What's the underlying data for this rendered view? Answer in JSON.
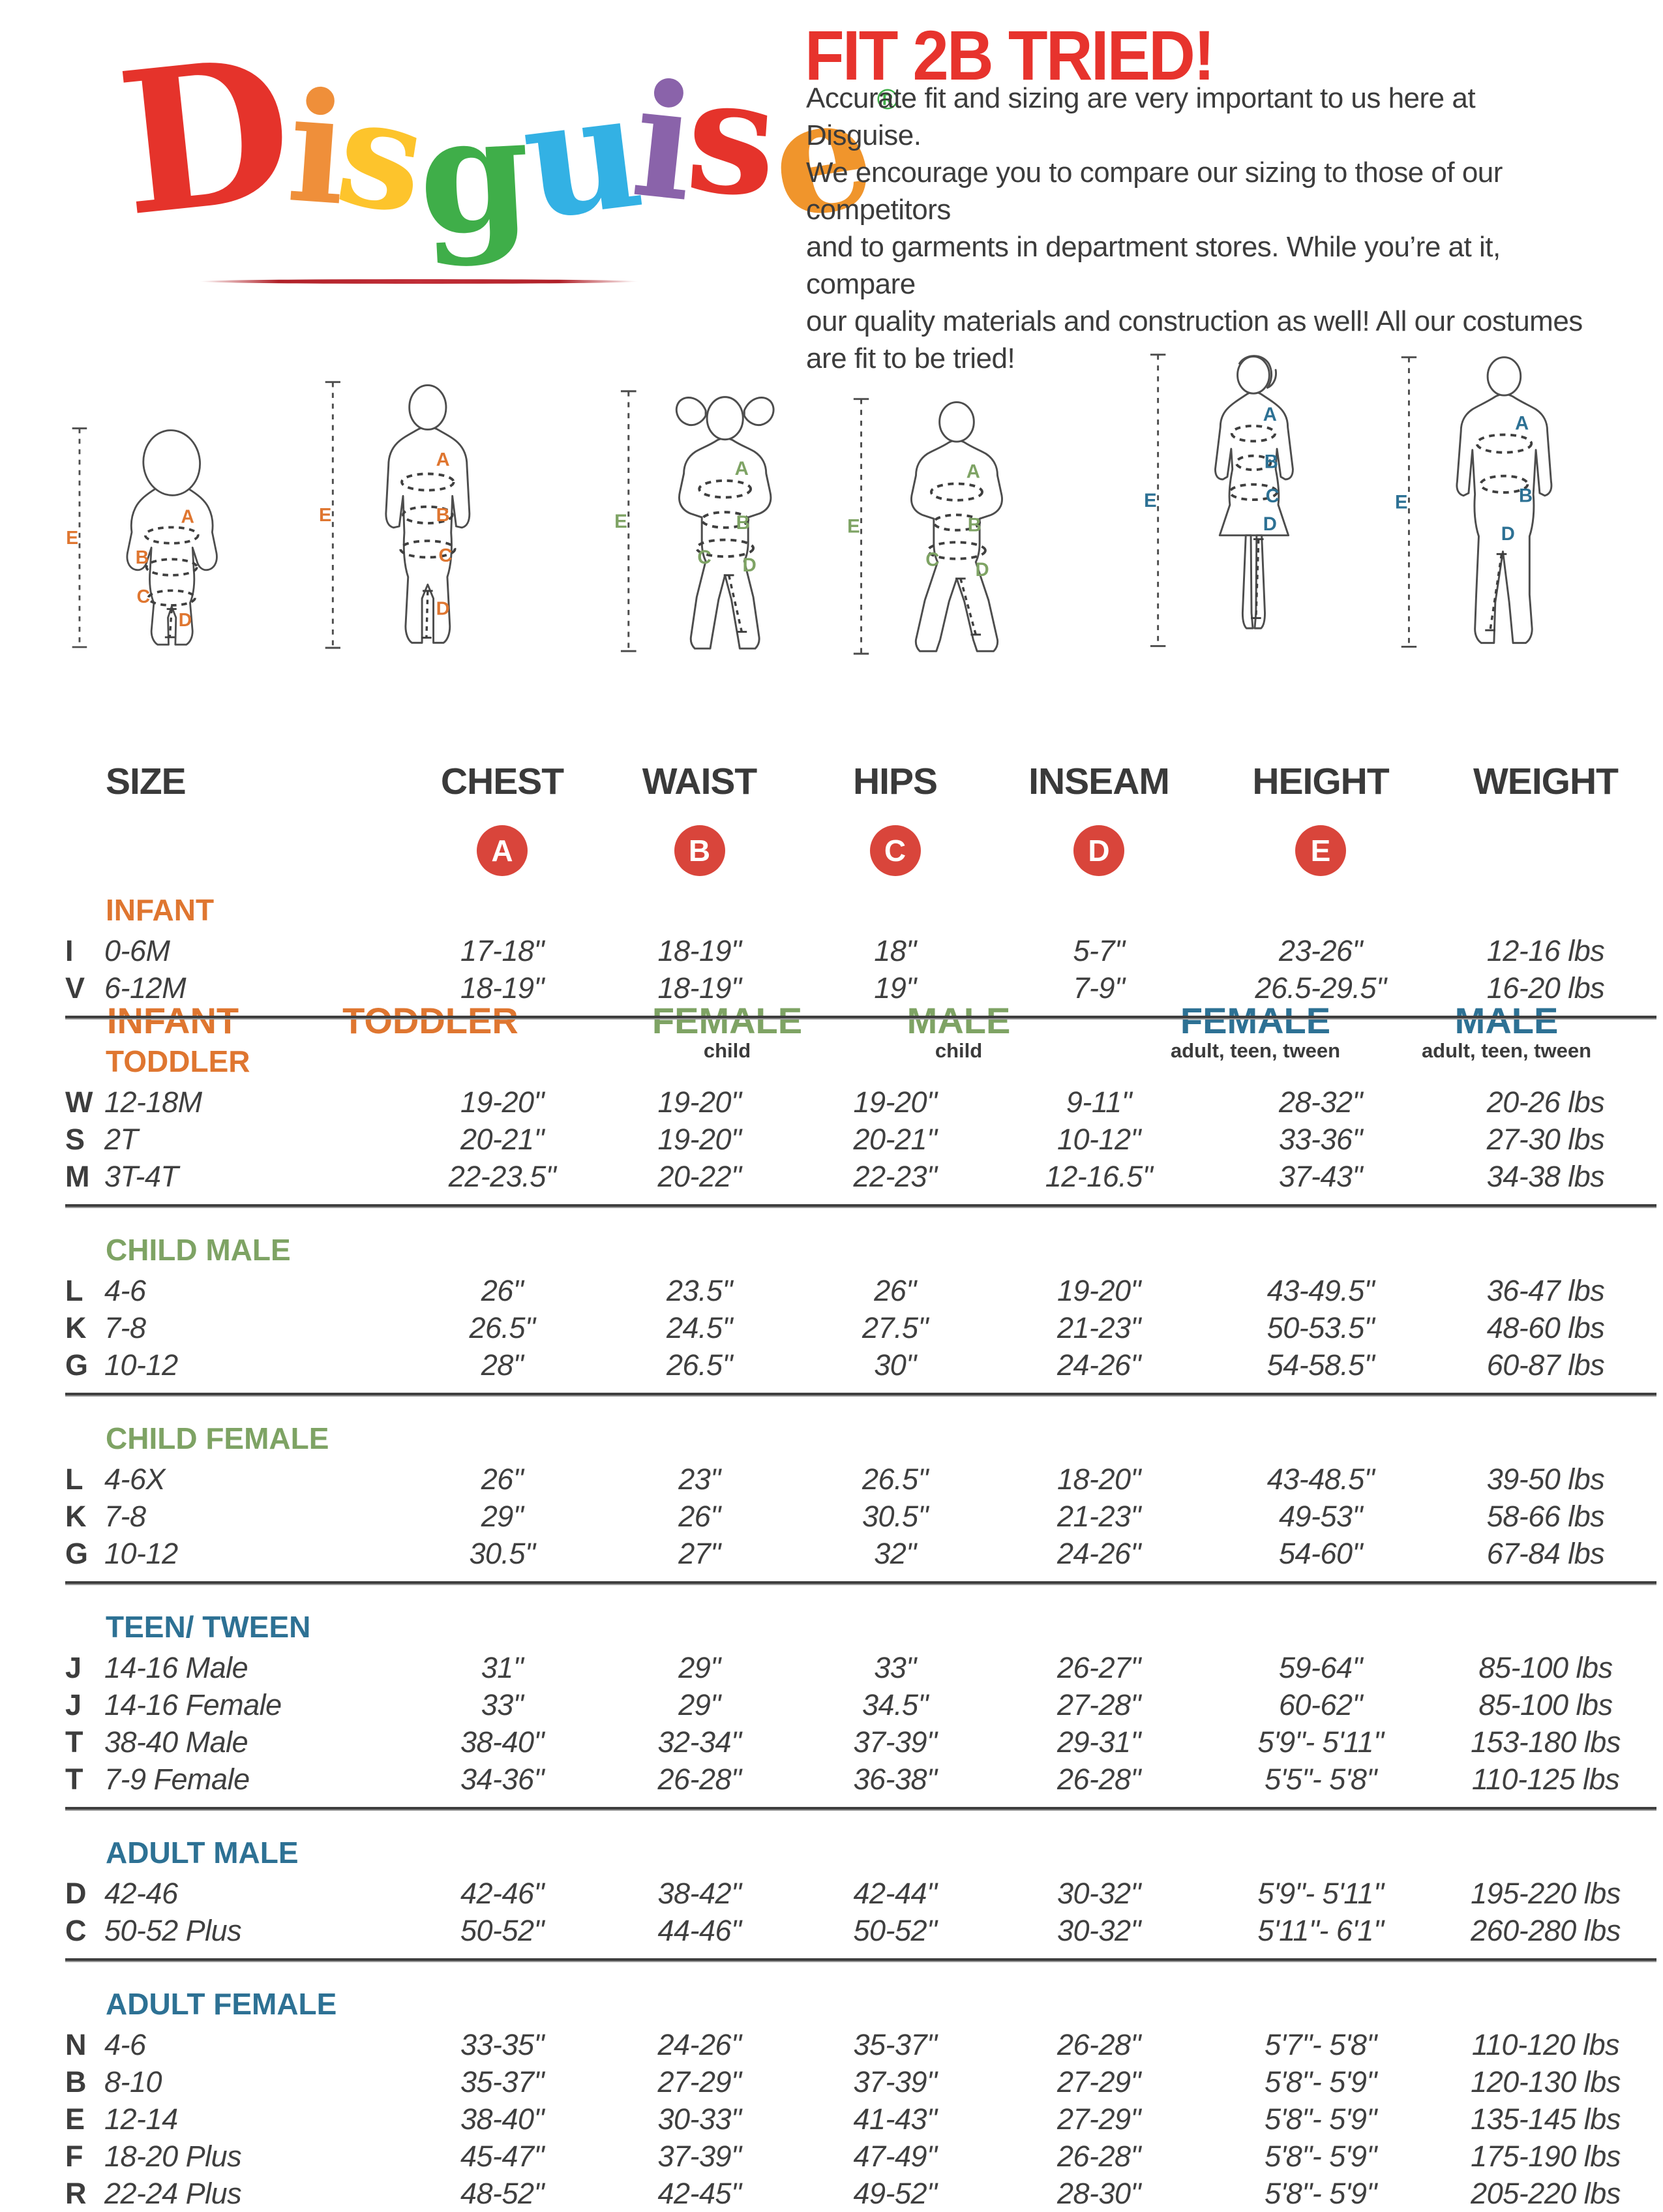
{
  "logo": {
    "letters": [
      {
        "ch": "D",
        "color": "#e5332b"
      },
      {
        "ch": "i",
        "color": "#ef8f3a"
      },
      {
        "ch": "s",
        "color": "#fdc42c"
      },
      {
        "ch": "g",
        "color": "#3fae49"
      },
      {
        "ch": "u",
        "color": "#33b1e4"
      },
      {
        "ch": "i",
        "color": "#8a63aa"
      },
      {
        "ch": "s",
        "color": "#e5332b"
      },
      {
        "ch": "e",
        "color": "#f0952c"
      }
    ],
    "registered": "®",
    "registered_color": "#3fae49"
  },
  "header": {
    "title": "FIT 2B TRIED!",
    "title_color": "#e7332d",
    "paragraph_lines": [
      "Accurate fit and sizing are very important to us here at Disguise.",
      "We encourage you to compare our sizing to those of our competitors",
      "and to garments in department stores. While you’re at it, compare",
      "our quality materials and construction as well! All our costumes",
      "are fit to be tried!"
    ]
  },
  "measure_letters": [
    "A",
    "B",
    "C",
    "D",
    "E"
  ],
  "figures": [
    {
      "id": "infant",
      "label": "INFANT",
      "sublabel": "",
      "color": "#df7630"
    },
    {
      "id": "toddler",
      "label": "TODDLER",
      "sublabel": "",
      "color": "#df7630"
    },
    {
      "id": "female-child",
      "label": "FEMALE",
      "sublabel": "child",
      "color": "#7ea364"
    },
    {
      "id": "male-child",
      "label": "MALE",
      "sublabel": "child",
      "color": "#7ea364"
    },
    {
      "id": "female-adult",
      "label": "FEMALE",
      "sublabel": "adult, teen, tween",
      "color": "#2d7194"
    },
    {
      "id": "male-adult",
      "label": "MALE",
      "sublabel": "adult, teen, tween",
      "color": "#2d7194"
    }
  ],
  "table": {
    "columns": [
      "SIZE",
      "CHEST",
      "WAIST",
      "HIPS",
      "INSEAM",
      "HEIGHT",
      "WEIGHT"
    ],
    "badge_color": "#d9453b",
    "sections": [
      {
        "title": "INFANT",
        "color": "#df7630",
        "rows": [
          [
            "I",
            "0-6M",
            "17-18\"",
            "18-19\"",
            "18\"",
            "5-7\"",
            "23-26\"",
            "12-16 lbs"
          ],
          [
            "V",
            "6-12M",
            "18-19\"",
            "18-19\"",
            "19\"",
            "7-9\"",
            "26.5-29.5\"",
            "16-20 lbs"
          ]
        ]
      },
      {
        "title": "TODDLER",
        "color": "#df7630",
        "rows": [
          [
            "W",
            "12-18M",
            "19-20\"",
            "19-20\"",
            "19-20\"",
            "9-11\"",
            "28-32\"",
            "20-26 lbs"
          ],
          [
            "S",
            "2T",
            "20-21\"",
            "19-20\"",
            "20-21\"",
            "10-12\"",
            "33-36\"",
            "27-30 lbs"
          ],
          [
            "M",
            "3T-4T",
            "22-23.5\"",
            "20-22\"",
            "22-23\"",
            "12-16.5\"",
            "37-43\"",
            "34-38 lbs"
          ]
        ]
      },
      {
        "title": "CHILD MALE",
        "color": "#7ea364",
        "rows": [
          [
            "L",
            "4-6",
            "26\"",
            "23.5\"",
            "26\"",
            "19-20\"",
            "43-49.5\"",
            "36-47 lbs"
          ],
          [
            "K",
            "7-8",
            "26.5\"",
            "24.5\"",
            "27.5\"",
            "21-23\"",
            "50-53.5\"",
            "48-60 lbs"
          ],
          [
            "G",
            "10-12",
            "28\"",
            "26.5\"",
            "30\"",
            "24-26\"",
            "54-58.5\"",
            "60-87 lbs"
          ]
        ]
      },
      {
        "title": "CHILD FEMALE",
        "color": "#7ea364",
        "rows": [
          [
            "L",
            "4-6X",
            "26\"",
            "23\"",
            "26.5\"",
            "18-20\"",
            "43-48.5\"",
            "39-50 lbs"
          ],
          [
            "K",
            "7-8",
            "29\"",
            "26\"",
            "30.5\"",
            "21-23\"",
            "49-53\"",
            "58-66 lbs"
          ],
          [
            "G",
            "10-12",
            "30.5\"",
            "27\"",
            "32\"",
            "24-26\"",
            "54-60\"",
            "67-84 lbs"
          ]
        ]
      },
      {
        "title": "TEEN/ TWEEN",
        "color": "#2d7194",
        "rows": [
          [
            "J",
            "14-16 Male",
            "31\"",
            "29\"",
            "33\"",
            "26-27\"",
            "59-64\"",
            "85-100 lbs"
          ],
          [
            "J",
            "14-16 Female",
            "33\"",
            "29\"",
            "34.5\"",
            "27-28\"",
            "60-62\"",
            "85-100 lbs"
          ],
          [
            "T",
            "38-40 Male",
            "38-40\"",
            "32-34\"",
            "37-39\"",
            "29-31\"",
            "5'9\"- 5'11\"",
            "153-180 lbs"
          ],
          [
            "T",
            "7-9 Female",
            "34-36\"",
            "26-28\"",
            "36-38\"",
            "26-28\"",
            "5'5\"- 5'8\"",
            "110-125 lbs"
          ]
        ]
      },
      {
        "title": "ADULT MALE",
        "color": "#2d7194",
        "rows": [
          [
            "D",
            "42-46",
            "42-46\"",
            "38-42\"",
            "42-44\"",
            "30-32\"",
            "5'9\"- 5'11\"",
            "195-220 lbs"
          ],
          [
            "C",
            "50-52 Plus",
            "50-52\"",
            "44-46\"",
            "50-52\"",
            "30-32\"",
            "5'11\"- 6'1\"",
            "260-280 lbs"
          ]
        ]
      },
      {
        "title": "ADULT FEMALE",
        "color": "#2d7194",
        "rows": [
          [
            "N",
            "4-6",
            "33-35\"",
            "24-26\"",
            "35-37\"",
            "26-28\"",
            "5'7\"- 5'8\"",
            "110-120 lbs"
          ],
          [
            "B",
            "8-10",
            "35-37\"",
            "27-29\"",
            "37-39\"",
            "27-29\"",
            "5'8\"- 5'9\"",
            "120-130 lbs"
          ],
          [
            "E",
            "12-14",
            "38-40\"",
            "30-33\"",
            "41-43\"",
            "27-29\"",
            "5'8\"- 5'9\"",
            "135-145 lbs"
          ],
          [
            "F",
            "18-20 Plus",
            "45-47\"",
            "37-39\"",
            "47-49\"",
            "26-28\"",
            "5'8\"- 5'9\"",
            "175-190 lbs"
          ],
          [
            "R",
            "22-24 Plus",
            "48-52\"",
            "42-45\"",
            "49-52\"",
            "28-30\"",
            "5'8\"- 5'9\"",
            "205-220 lbs"
          ]
        ]
      }
    ]
  }
}
